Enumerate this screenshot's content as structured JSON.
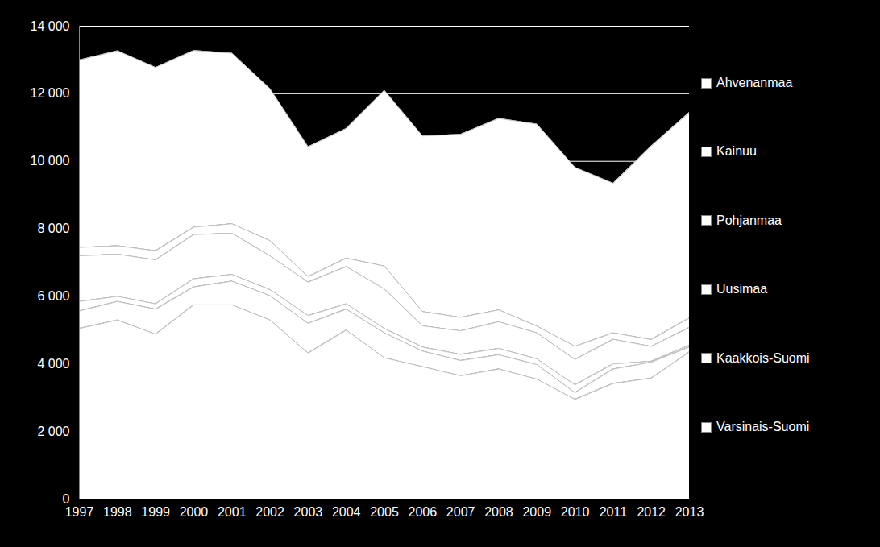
{
  "chart_data": {
    "type": "area",
    "stacked": true,
    "grid": true,
    "legend": "right",
    "x": [
      1997,
      1998,
      1999,
      2000,
      2001,
      2002,
      2003,
      2004,
      2005,
      2006,
      2007,
      2008,
      2009,
      2010,
      2011,
      2012,
      2013
    ],
    "xlim": [
      1997,
      2013
    ],
    "xticks": [
      1997,
      1998,
      1999,
      2000,
      2001,
      2002,
      2003,
      2004,
      2005,
      2006,
      2007,
      2008,
      2009,
      2010,
      2011,
      2012,
      2013
    ],
    "ylim": [
      0,
      14000
    ],
    "yticks": [
      0,
      {
        "value": 2000,
        "label": "2 000"
      },
      {
        "value": 4000,
        "label": "4 000"
      },
      {
        "value": 6000,
        "label": "6 000"
      },
      {
        "value": 8000,
        "label": "8 000"
      },
      {
        "value": 10000,
        "label": "10 000"
      },
      {
        "value": 12000,
        "label": "12 000"
      },
      {
        "value": 14000,
        "label": "14 000"
      }
    ],
    "series": [
      {
        "name": "Varsinais-Suomi",
        "color": "#ffffff",
        "values": [
          5050,
          5300,
          4880,
          5750,
          5750,
          5300,
          4320,
          5000,
          4180,
          3920,
          3650,
          3850,
          3550,
          2950,
          3420,
          3580,
          4350
        ]
      },
      {
        "name": "Kaakkois-Suomi",
        "color": "#ffffff",
        "values": [
          520,
          550,
          740,
          530,
          700,
          720,
          880,
          620,
          740,
          460,
          450,
          420,
          430,
          200,
          430,
          470,
          150
        ]
      },
      {
        "name": "Uusimaa",
        "color": "#ffffff",
        "values": [
          280,
          150,
          160,
          240,
          200,
          180,
          230,
          160,
          130,
          120,
          180,
          190,
          170,
          230,
          150,
          30,
          50
        ]
      },
      {
        "name": "Pohjanmaa",
        "color": "#ffffff",
        "values": [
          1350,
          1250,
          1300,
          1310,
          1220,
          1000,
          990,
          1100,
          1170,
          630,
          700,
          790,
          770,
          750,
          730,
          440,
          530
        ]
      },
      {
        "name": "Kainuu",
        "color": "#ffffff",
        "values": [
          250,
          250,
          270,
          220,
          280,
          450,
          160,
          250,
          680,
          420,
          400,
          350,
          200,
          390,
          190,
          200,
          280
        ]
      },
      {
        "name": "Ahvenanmaa",
        "color": "#ffffff",
        "values": [
          5550,
          5770,
          5430,
          5230,
          5050,
          4500,
          3850,
          3840,
          5200,
          5200,
          5420,
          5670,
          5980,
          5300,
          4430,
          5730,
          6090
        ]
      }
    ]
  }
}
